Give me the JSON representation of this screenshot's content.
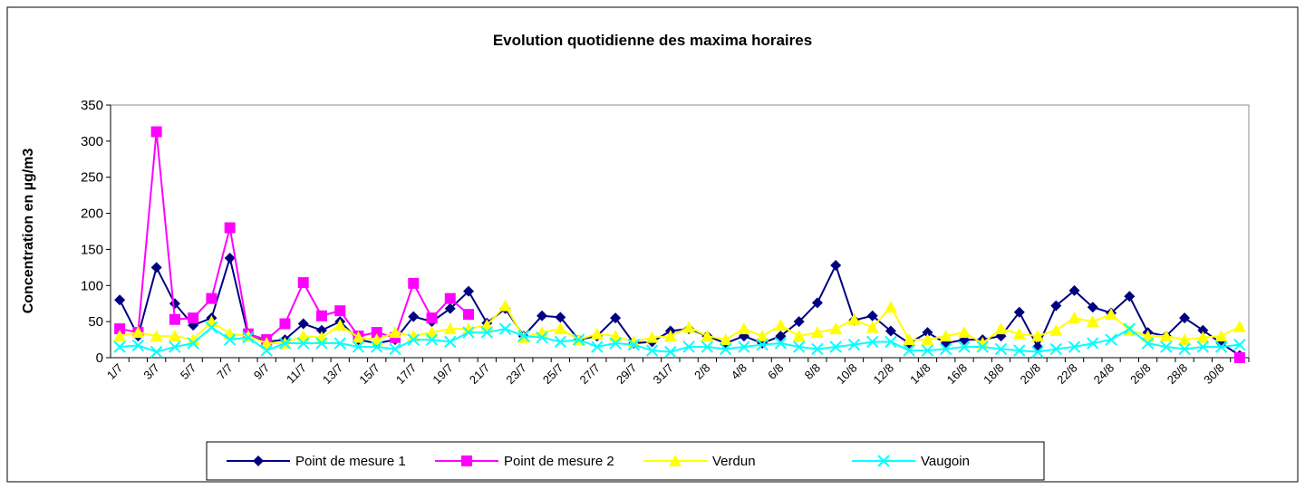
{
  "chart_data": {
    "type": "line",
    "title": "Evolution quotidienne des maxima horaires",
    "y_label": "Concentration en µg/m3",
    "categories": [
      "1/7",
      null,
      "3/7",
      null,
      "5/7",
      null,
      "7/7",
      null,
      "9/7",
      null,
      "11/7",
      null,
      "13/7",
      null,
      "15/7",
      null,
      "17/7",
      null,
      "19/7",
      null,
      "21/7",
      null,
      "23/7",
      null,
      "25/7",
      null,
      "27/7",
      null,
      "29/7",
      null,
      "31/7",
      null,
      "2/8",
      null,
      "4/8",
      null,
      "6/8",
      null,
      "8/8",
      null,
      "10/8",
      null,
      "12/8",
      null,
      "14/8",
      null,
      "16/8",
      null,
      "18/8",
      null,
      "20/8",
      null,
      "22/8",
      null,
      "24/8",
      null,
      "26/8",
      null,
      "28/8",
      null,
      "30/8",
      null
    ],
    "ylim": [
      0,
      350
    ],
    "yticks": [
      0,
      50,
      100,
      150,
      200,
      250,
      300,
      350
    ],
    "grid": false,
    "legend": "bottom",
    "series": [
      {
        "name": "Point de mesure 1",
        "color": "#000080",
        "marker": "diamond",
        "values": [
          80,
          30,
          125,
          75,
          45,
          55,
          138,
          30,
          22,
          25,
          47,
          38,
          50,
          25,
          20,
          25,
          57,
          50,
          68,
          92,
          48,
          68,
          30,
          58,
          56,
          25,
          30,
          55,
          20,
          22,
          37,
          40,
          30,
          20,
          30,
          20,
          30,
          50,
          76,
          128,
          52,
          58,
          37,
          20,
          35,
          20,
          25,
          25,
          30,
          63,
          15,
          72,
          93,
          70,
          62,
          85,
          35,
          30,
          55,
          38,
          20,
          3
        ]
      },
      {
        "name": "Point de mesure 2",
        "color": "#ff00ff",
        "marker": "square",
        "values": [
          40,
          35,
          313,
          53,
          55,
          82,
          180,
          33,
          25,
          47,
          104,
          58,
          65,
          30,
          35,
          28,
          103,
          55,
          82,
          60,
          null,
          null,
          null,
          null,
          null,
          null,
          null,
          null,
          null,
          null,
          null,
          null,
          null,
          null,
          null,
          null,
          null,
          null,
          null,
          null,
          null,
          null,
          null,
          null,
          null,
          null,
          null,
          null,
          null,
          null,
          null,
          null,
          null,
          null,
          null,
          null,
          null,
          null,
          null,
          null,
          null,
          0
        ]
      },
      {
        "name": "Verdun",
        "color": "#ffff00",
        "marker": "triangle",
        "values": [
          30,
          35,
          30,
          30,
          25,
          50,
          33,
          30,
          20,
          20,
          30,
          28,
          45,
          28,
          25,
          35,
          30,
          35,
          40,
          40,
          45,
          72,
          28,
          35,
          40,
          25,
          33,
          30,
          22,
          28,
          30,
          42,
          30,
          25,
          40,
          30,
          45,
          30,
          35,
          40,
          53,
          42,
          70,
          25,
          25,
          30,
          35,
          20,
          40,
          33,
          30,
          38,
          55,
          50,
          60,
          38,
          30,
          30,
          25,
          28,
          30,
          43
        ]
      },
      {
        "name": "Vaugoin",
        "color": "#00ffff",
        "marker": "cross",
        "values": [
          15,
          17,
          8,
          15,
          20,
          42,
          25,
          28,
          10,
          20,
          20,
          20,
          20,
          15,
          15,
          12,
          25,
          25,
          22,
          35,
          35,
          40,
          30,
          28,
          22,
          25,
          15,
          20,
          18,
          10,
          8,
          15,
          15,
          12,
          15,
          18,
          20,
          15,
          12,
          15,
          18,
          22,
          22,
          10,
          10,
          12,
          15,
          15,
          12,
          10,
          8,
          12,
          15,
          20,
          25,
          40,
          20,
          15,
          12,
          15,
          15,
          18
        ]
      }
    ]
  }
}
